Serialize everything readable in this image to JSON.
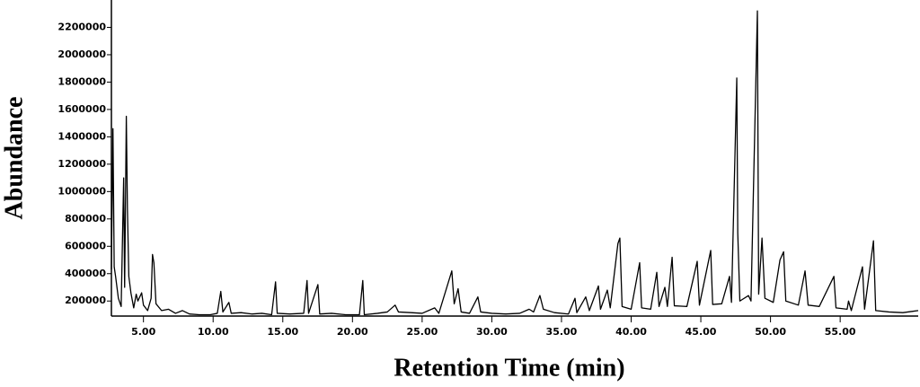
{
  "chart_data": {
    "type": "line",
    "y_label": "Abundance",
    "x_label": "Retention Time (min)",
    "color": "#000000",
    "xlim": [
      2.7,
      60.6
    ],
    "ylim": [
      90000,
      2400000
    ],
    "xticks": [
      {
        "value": 5,
        "label": "5.00"
      },
      {
        "value": 10,
        "label": "10.00"
      },
      {
        "value": 15,
        "label": "15.00"
      },
      {
        "value": 20,
        "label": "20.00"
      },
      {
        "value": 25,
        "label": "25.00"
      },
      {
        "value": 30,
        "label": "30.00"
      },
      {
        "value": 35,
        "label": "35.00"
      },
      {
        "value": 40,
        "label": "40.00"
      },
      {
        "value": 45,
        "label": "45.00"
      },
      {
        "value": 50,
        "label": "50.00"
      },
      {
        "value": 55,
        "label": "55.00"
      }
    ],
    "yticks": [
      200000,
      400000,
      600000,
      800000,
      1000000,
      1200000,
      1400000,
      1600000,
      1800000,
      2000000,
      2200000
    ],
    "x": [
      2.7,
      2.81,
      2.9,
      3.0,
      3.2,
      3.4,
      3.58,
      3.65,
      3.77,
      3.85,
      3.95,
      4.1,
      4.3,
      4.48,
      4.6,
      4.87,
      5.0,
      5.3,
      5.55,
      5.65,
      5.75,
      5.9,
      6.3,
      6.8,
      7.3,
      7.8,
      8.3,
      9.0,
      9.8,
      10.3,
      10.55,
      10.7,
      11.13,
      11.3,
      12.0,
      12.8,
      13.5,
      14.2,
      14.48,
      14.6,
      15.5,
      16.5,
      16.74,
      16.85,
      17.52,
      17.65,
      18.5,
      19.5,
      20.5,
      20.74,
      20.85,
      21.8,
      22.5,
      23.06,
      23.3,
      24.2,
      25.0,
      25.9,
      26.2,
      27.13,
      27.3,
      27.58,
      27.8,
      28.4,
      29.0,
      29.2,
      30.0,
      31.0,
      32.0,
      32.68,
      33.0,
      33.45,
      33.7,
      34.5,
      35.5,
      35.97,
      36.1,
      36.74,
      37.0,
      37.65,
      37.8,
      38.29,
      38.5,
      39.05,
      39.19,
      39.35,
      40.0,
      40.61,
      40.75,
      41.4,
      41.84,
      42.0,
      42.42,
      42.6,
      42.94,
      43.1,
      44.0,
      44.74,
      44.9,
      45.71,
      45.85,
      46.5,
      47.06,
      47.2,
      47.58,
      47.65,
      47.8,
      48.42,
      48.6,
      49.06,
      49.15,
      49.39,
      49.6,
      50.2,
      50.68,
      50.94,
      51.1,
      52.0,
      52.48,
      52.7,
      53.5,
      54.55,
      54.7,
      55.5,
      55.6,
      55.8,
      56.6,
      56.75,
      57.39,
      57.55,
      58.5,
      59.5,
      60.6
    ],
    "values": [
      430000,
      1460000,
      450000,
      380000,
      220000,
      160000,
      1100000,
      300000,
      1550000,
      870000,
      380000,
      260000,
      150000,
      250000,
      200000,
      260000,
      170000,
      130000,
      220000,
      540000,
      480000,
      180000,
      130000,
      140000,
      110000,
      130000,
      105000,
      100000,
      100000,
      110000,
      270000,
      120000,
      190000,
      110000,
      115000,
      105000,
      110000,
      100000,
      340000,
      110000,
      105000,
      110000,
      350000,
      110000,
      320000,
      105000,
      110000,
      100000,
      100000,
      350000,
      100000,
      110000,
      120000,
      170000,
      120000,
      115000,
      110000,
      150000,
      110000,
      420000,
      180000,
      290000,
      120000,
      110000,
      230000,
      120000,
      110000,
      105000,
      110000,
      140000,
      120000,
      240000,
      140000,
      115000,
      105000,
      220000,
      115000,
      230000,
      130000,
      310000,
      140000,
      280000,
      150000,
      620000,
      660000,
      160000,
      140000,
      480000,
      150000,
      140000,
      410000,
      160000,
      300000,
      160000,
      520000,
      165000,
      160000,
      490000,
      170000,
      570000,
      175000,
      180000,
      380000,
      190000,
      1830000,
      700000,
      200000,
      240000,
      200000,
      2320000,
      250000,
      660000,
      220000,
      190000,
      500000,
      560000,
      200000,
      170000,
      420000,
      170000,
      160000,
      380000,
      150000,
      140000,
      200000,
      130000,
      450000,
      140000,
      640000,
      130000,
      120000,
      115000,
      130000
    ]
  }
}
